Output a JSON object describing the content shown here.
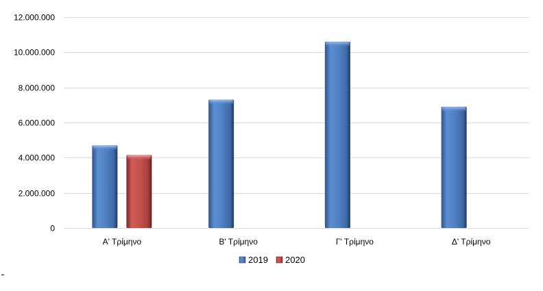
{
  "chart_data": {
    "type": "bar",
    "categories": [
      "Α' Τρίμηνο",
      "Β' Τρίμηνο",
      "Γ' Τρίμηνο",
      "Δ' Τρίμηνο"
    ],
    "series": [
      {
        "name": "2019",
        "values": [
          4700000,
          7300000,
          10600000,
          6900000
        ],
        "color": "#4f81bd"
      },
      {
        "name": "2020",
        "values": [
          4150000,
          null,
          null,
          null
        ],
        "color": "#c0504d"
      }
    ],
    "title": "",
    "xlabel": "",
    "ylabel": "",
    "ylim": [
      0,
      12000000
    ],
    "yticks": [
      0,
      2000000,
      4000000,
      6000000,
      8000000,
      10000000,
      12000000
    ],
    "ytick_labels": [
      "0",
      "2.000.000",
      "4.000.000",
      "6.000.000",
      "8.000.000",
      "10.000.000",
      "12.000.000"
    ],
    "grid": true,
    "legend_position": "bottom"
  }
}
